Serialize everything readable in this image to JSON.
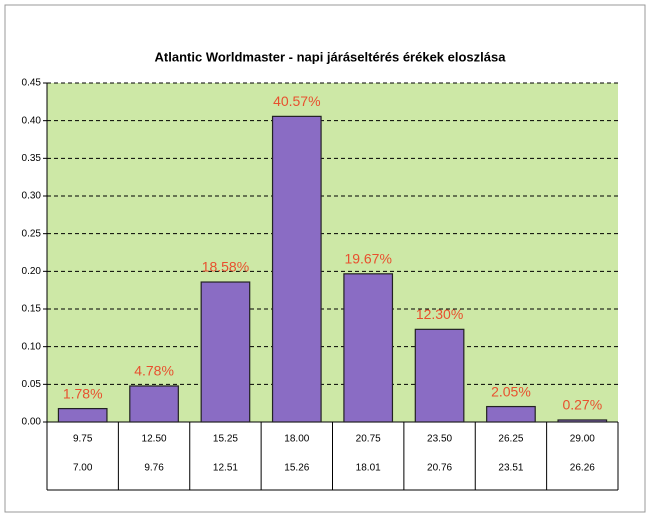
{
  "chart_data": {
    "type": "bar",
    "title": "Atlantic Worldmaster -  napi járásеltérés érékek eloszlása",
    "categories": [
      [
        "9.75",
        "7.00"
      ],
      [
        "12.50",
        "9.76"
      ],
      [
        "15.25",
        "12.51"
      ],
      [
        "18.00",
        "15.26"
      ],
      [
        "20.75",
        "18.01"
      ],
      [
        "23.50",
        "20.76"
      ],
      [
        "26.25",
        "23.51"
      ],
      [
        "29.00",
        "26.26"
      ]
    ],
    "values": [
      0.0178,
      0.0478,
      0.1858,
      0.4057,
      0.1967,
      0.123,
      0.0205,
      0.0027
    ],
    "value_labels": [
      "1.78%",
      "4.78%",
      "18.58%",
      "40.57%",
      "19.67%",
      "12.30%",
      "2.05%",
      "0.27%"
    ],
    "color": "#8a6cc4",
    "ylim": [
      0,
      0.45
    ],
    "yticks": [
      {
        "value": 0,
        "label": "0.00"
      },
      {
        "value": 0.05,
        "label": "0.05"
      },
      {
        "value": 0.1,
        "label": "0.10"
      },
      {
        "value": 0.15,
        "label": "0.15"
      },
      {
        "value": 0.2,
        "label": "0.20"
      },
      {
        "value": 0.25,
        "label": "0.25"
      },
      {
        "value": 0.3,
        "label": "0.30"
      },
      {
        "value": 0.35,
        "label": "0.35"
      },
      {
        "value": 0.4,
        "label": "0.40"
      },
      {
        "value": 0.45,
        "label": "0.45"
      }
    ],
    "grid": true
  }
}
